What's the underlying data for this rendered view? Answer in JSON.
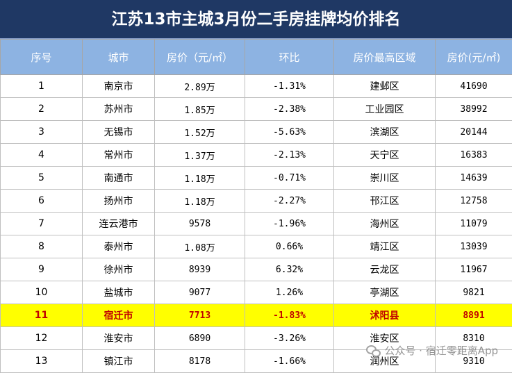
{
  "title": "江苏13市主城3月份二手房挂牌均价排名",
  "headers": [
    "序号",
    "城市",
    "房价（元/㎡）",
    "环比",
    "房价最高区域",
    "房价(元/㎡)"
  ],
  "rows": [
    {
      "rank": "1",
      "city": "南京市",
      "price": "2.89万",
      "mom": "-1.31%",
      "top_area": "建邺区",
      "top_price": "41690"
    },
    {
      "rank": "2",
      "city": "苏州市",
      "price": "1.85万",
      "mom": "-2.38%",
      "top_area": "工业园区",
      "top_price": "38992"
    },
    {
      "rank": "3",
      "city": "无锡市",
      "price": "1.52万",
      "mom": "-5.63%",
      "top_area": "滨湖区",
      "top_price": "20144"
    },
    {
      "rank": "4",
      "city": "常州市",
      "price": "1.37万",
      "mom": "-2.13%",
      "top_area": "天宁区",
      "top_price": "16383"
    },
    {
      "rank": "5",
      "city": "南通市",
      "price": "1.18万",
      "mom": "-0.71%",
      "top_area": "崇川区",
      "top_price": "14639"
    },
    {
      "rank": "6",
      "city": "扬州市",
      "price": "1.18万",
      "mom": "-2.27%",
      "top_area": "邗江区",
      "top_price": "12758"
    },
    {
      "rank": "7",
      "city": "连云港市",
      "price": "9578",
      "mom": "-1.96%",
      "top_area": "海州区",
      "top_price": "11079"
    },
    {
      "rank": "8",
      "city": "泰州市",
      "price": "1.08万",
      "mom": "0.66%",
      "top_area": "靖江区",
      "top_price": "13039"
    },
    {
      "rank": "9",
      "city": "徐州市",
      "price": "8939",
      "mom": "6.32%",
      "top_area": "云龙区",
      "top_price": "11967"
    },
    {
      "rank": "10",
      "city": "盐城市",
      "price": "9077",
      "mom": "1.26%",
      "top_area": "亭湖区",
      "top_price": "9821"
    },
    {
      "rank": "11",
      "city": "宿迁市",
      "price": "7713",
      "mom": "-1.83%",
      "top_area": "沭阳县",
      "top_price": "8891"
    },
    {
      "rank": "12",
      "city": "淮安市",
      "price": "6890",
      "mom": "-3.26%",
      "top_area": "淮安区",
      "top_price": "8310"
    },
    {
      "rank": "13",
      "city": "镇江市",
      "price": "8178",
      "mom": "-1.66%",
      "top_area": "润州区",
      "top_price": "9310"
    }
  ],
  "highlight_row": 10,
  "highlight_colors": {
    "background": "#ffff00",
    "text": "#c00000"
  },
  "watermark": "公众号 · 宿迁零距离App"
}
